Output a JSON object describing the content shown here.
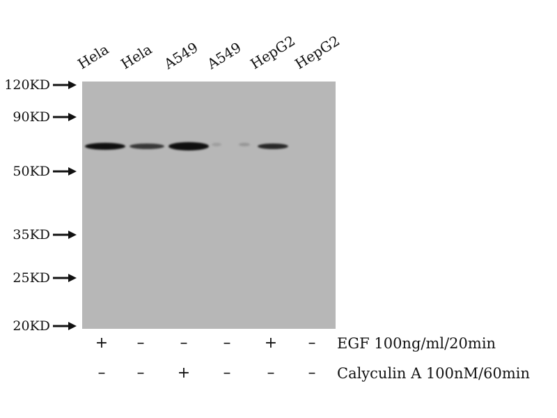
{
  "lanes": [
    "Hela",
    "Hela",
    "A549",
    "A549",
    "HepG2",
    "HepG2"
  ],
  "markers": [
    "120KD",
    "90KD",
    "50KD",
    "35KD",
    "25KD",
    "20KD"
  ],
  "treatments": [
    {
      "label": "EGF 100ng/ml/20min",
      "signs": [
        "+",
        "–",
        "–",
        "–",
        "+",
        "–"
      ]
    },
    {
      "label": "Calyculin A 100nM/60min",
      "signs": [
        "–",
        "–",
        "+",
        "–",
        "–",
        "–"
      ]
    }
  ],
  "band_intensity": [
    1.0,
    0.75,
    1.0,
    0.1,
    0.15,
    0.85
  ]
}
